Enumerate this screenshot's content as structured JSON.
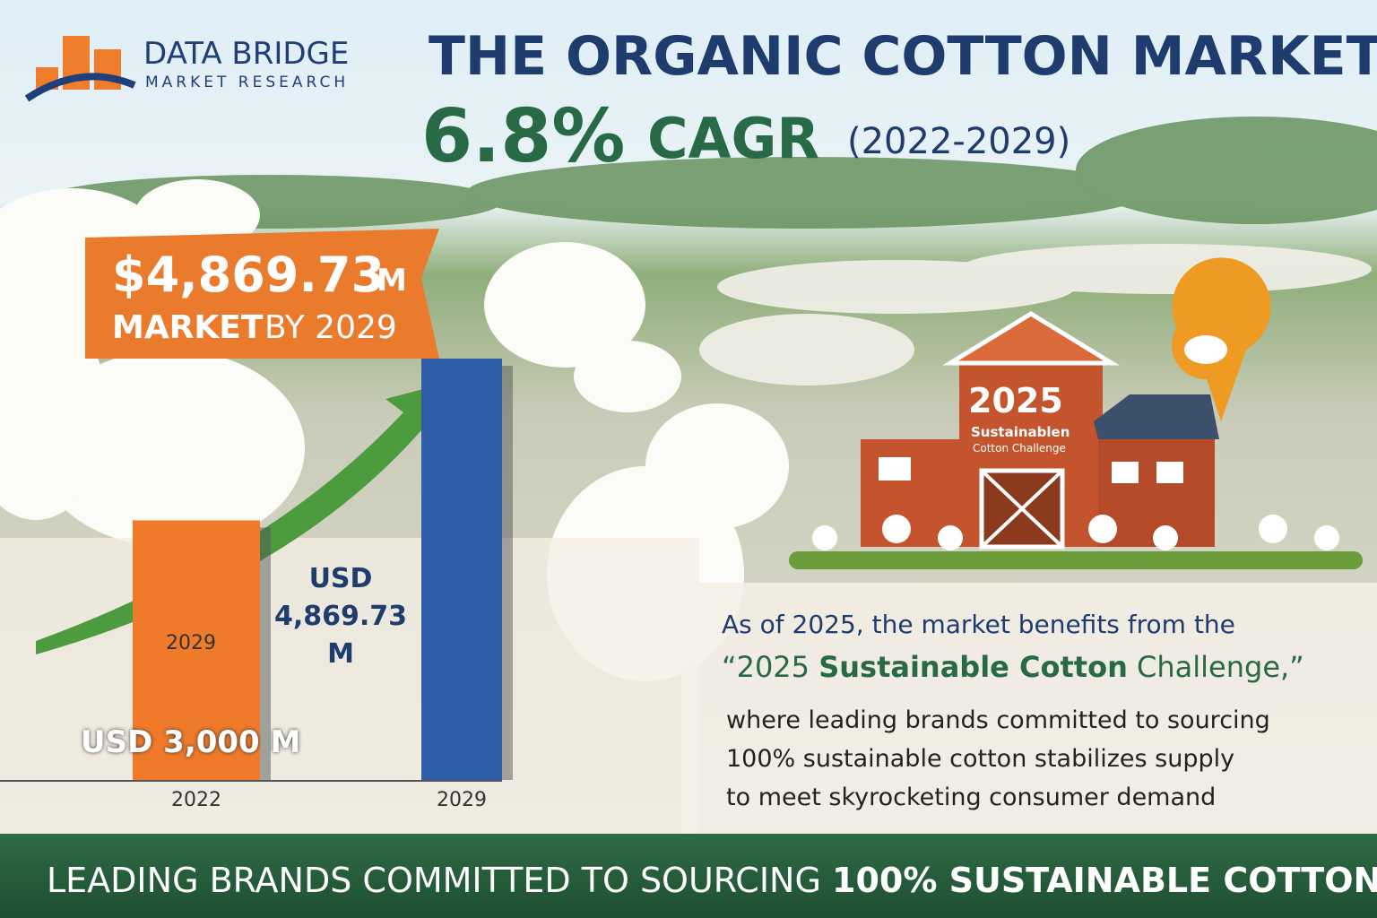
{
  "logo": {
    "name": "DATA BRIDGE",
    "tagline": "MARKET RESEARCH"
  },
  "headline": {
    "title": "THE ORGANIC COTTON MARKET",
    "rate": "6.8%",
    "metric": "CAGR",
    "period": "(2022-2029)"
  },
  "badge": {
    "amount": "$4,869.73",
    "unit": "M",
    "label": "MARKET",
    "year": "BY 2029"
  },
  "chart_data": {
    "type": "bar",
    "categories": [
      "2022",
      "2029"
    ],
    "values": [
      3000,
      4869.73
    ],
    "value_labels": [
      "USD 3,000 M",
      "USD 4,869.73 M"
    ],
    "colors": [
      "#ee7a2a",
      "#2f5ea8"
    ],
    "annotation": "2029"
  },
  "barn": {
    "year": "2025",
    "line1": "Sustainablen",
    "line2": "Cotton Challenge"
  },
  "paragraph": {
    "intro": "As of 2025, the market benefits from the",
    "quote_open": "“2025 ",
    "quote_bold": "Sustainable Cotton",
    "quote_close": " Challenge,”",
    "lines": [
      "where leading brands committed to sourcing",
      "100% sustainable cotton stabilizes supply",
      "to meet skyrocketing consumer demand"
    ]
  },
  "footer": {
    "text": "LEADING BRANDS COMMITTED TO SOURCING ",
    "emphasis": "100% SUSTAINABLE COTTON"
  }
}
